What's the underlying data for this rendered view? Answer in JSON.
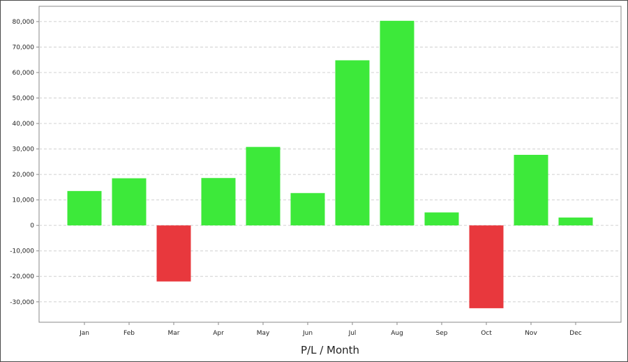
{
  "chart_data": {
    "type": "bar",
    "title": "",
    "xlabel": "P/L / Month",
    "ylabel": "",
    "categories": [
      "Jan",
      "Feb",
      "Mar",
      "Apr",
      "May",
      "Jun",
      "Jul",
      "Aug",
      "Sep",
      "Oct",
      "Nov",
      "Dec"
    ],
    "values": [
      13500,
      18500,
      -22000,
      18600,
      30800,
      12700,
      64800,
      80300,
      5100,
      -32500,
      27700,
      3100
    ],
    "ylim": [
      -38000,
      86000
    ],
    "yticks": [
      80000,
      70000,
      60000,
      50000,
      40000,
      30000,
      20000,
      10000,
      0,
      -10000,
      -20000,
      -30000
    ],
    "ytick_labels": [
      "80,000",
      "70,000",
      "60,000",
      "50,000",
      "40,000",
      "30,000",
      "20,000",
      "10,000",
      "0",
      "-10,000",
      "-20,000",
      "-30,000"
    ],
    "grid": true,
    "colors": {
      "positive": "#3de93a",
      "negative": "#e8383d",
      "grid": "#d0d0d0",
      "axis": "#888888"
    }
  }
}
